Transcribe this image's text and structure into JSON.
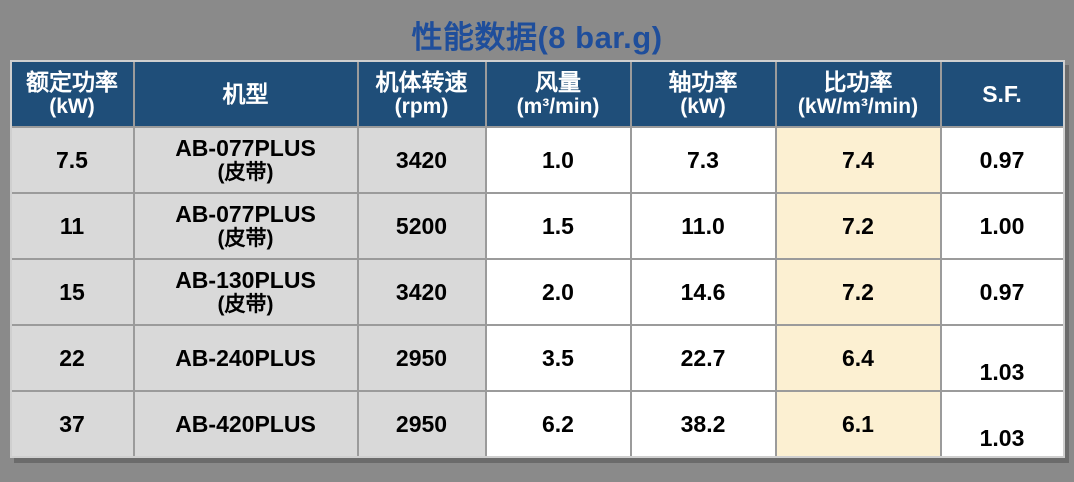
{
  "page": {
    "background": "#8A8A8A"
  },
  "title": {
    "text": "性能数据(8 bar.g)",
    "color": "#1F4E9B"
  },
  "table": {
    "columns": [
      {
        "id": "power",
        "label": "额定功率",
        "unit": "(kW)"
      },
      {
        "id": "model",
        "label": "机型",
        "unit": ""
      },
      {
        "id": "rpm",
        "label": "机体转速",
        "unit": "(rpm)"
      },
      {
        "id": "flow",
        "label": "风量",
        "unit": "(m³/min)"
      },
      {
        "id": "shaft",
        "label": "轴功率",
        "unit": "(kW)"
      },
      {
        "id": "spec",
        "label": "比功率",
        "unit": "(kW/m³/min)"
      },
      {
        "id": "sf",
        "label": "S.F.",
        "unit": ""
      }
    ],
    "rows": [
      {
        "power": "7.5",
        "model": "AB-077PLUS",
        "model_note": "(皮带)",
        "rpm": "3420",
        "flow": "1.0",
        "shaft": "7.3",
        "spec": "7.4",
        "sf": "0.97",
        "sf_low": false
      },
      {
        "power": "11",
        "model": "AB-077PLUS",
        "model_note": "(皮带)",
        "rpm": "5200",
        "flow": "1.5",
        "shaft": "11.0",
        "spec": "7.2",
        "sf": "1.00",
        "sf_low": false
      },
      {
        "power": "15",
        "model": "AB-130PLUS",
        "model_note": "(皮带)",
        "rpm": "3420",
        "flow": "2.0",
        "shaft": "14.6",
        "spec": "7.2",
        "sf": "0.97",
        "sf_low": false
      },
      {
        "power": "22",
        "model": "AB-240PLUS",
        "model_note": "",
        "rpm": "2950",
        "flow": "3.5",
        "shaft": "22.7",
        "spec": "6.4",
        "sf": "1.03",
        "sf_low": true
      },
      {
        "power": "37",
        "model": "AB-420PLUS",
        "model_note": "",
        "rpm": "2950",
        "flow": "6.2",
        "shaft": "38.2",
        "spec": "6.1",
        "sf": "1.03",
        "sf_low": true
      }
    ],
    "colors": {
      "header_bg": "#1F4E79",
      "header_text": "#FFFFFF",
      "gray_cell": "#D9D9D9",
      "white_cell": "#FFFFFF",
      "highlight_cell": "#FCF0D2",
      "grid_line": "#9B9B9B"
    }
  }
}
